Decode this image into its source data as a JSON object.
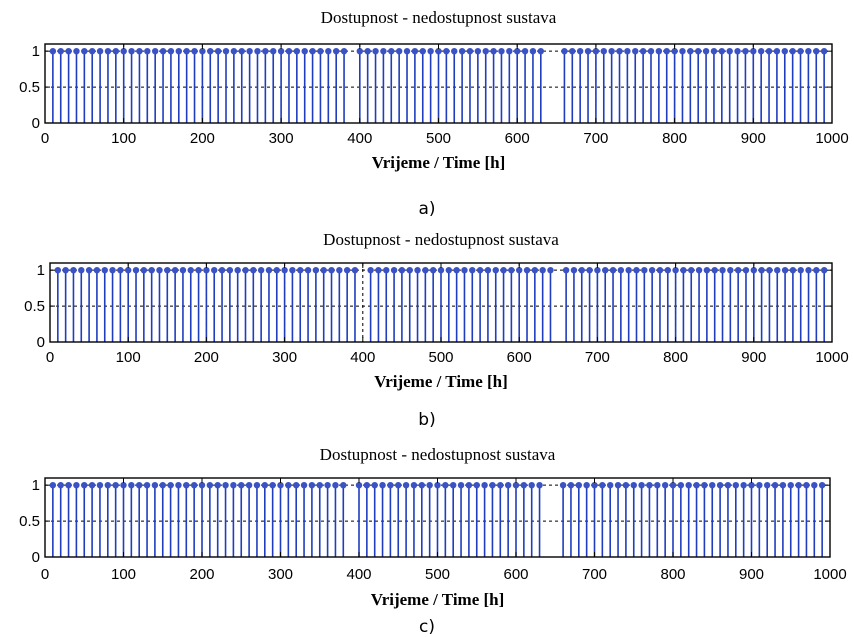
{
  "chart_data": [
    {
      "panel": "a)",
      "type": "stem",
      "title": "Dostupnost -  nedostupnost sustava",
      "xlabel": "Vrijeme / Time  [h]",
      "ylabel": "",
      "xlim": [
        0,
        1000
      ],
      "ylim": [
        0,
        1.1
      ],
      "xticks": [
        "0",
        "100",
        "200",
        "300",
        "400",
        "500",
        "600",
        "700",
        "800",
        "900",
        "1000"
      ],
      "yticks": [
        "0",
        "0.5",
        "1"
      ],
      "grid": true,
      "sample_step": 10,
      "x_start": 10,
      "x_end": 990,
      "value": 1,
      "unavailable_x": [
        390,
        640,
        650
      ]
    },
    {
      "panel": "b)",
      "type": "stem",
      "title": "Dostupnost -  nedostupnost sustava",
      "xlabel": "Vrijeme / Time  [h]",
      "ylabel": "",
      "xlim": [
        0,
        1000
      ],
      "ylim": [
        0,
        1.1
      ],
      "xticks": [
        "0",
        "100",
        "200",
        "300",
        "400",
        "500",
        "600",
        "700",
        "800",
        "900",
        "1000"
      ],
      "yticks": [
        "0",
        "0.5",
        "1"
      ],
      "grid": true,
      "sample_step": 10,
      "x_start": 10,
      "x_end": 990,
      "value": 1,
      "unavailable_x": [
        400,
        650
      ]
    },
    {
      "panel": "c)",
      "type": "stem",
      "title": "Dostupnost -  nedostupnost sustava",
      "xlabel": "Vrijeme / Time  [h]",
      "ylabel": "",
      "xlim": [
        0,
        1000
      ],
      "ylim": [
        0,
        1.1
      ],
      "xticks": [
        "0",
        "100",
        "200",
        "300",
        "400",
        "500",
        "600",
        "700",
        "800",
        "900",
        "1000"
      ],
      "yticks": [
        "0",
        "0.5",
        "1"
      ],
      "grid": true,
      "sample_step": 10,
      "x_start": 10,
      "x_end": 990,
      "value": 1,
      "unavailable_x": [
        390,
        640,
        650
      ]
    }
  ],
  "colors": {
    "stem": "#1f3dbd",
    "marker": "#3a52c4",
    "axis": "#000000",
    "grid": "#000000"
  }
}
